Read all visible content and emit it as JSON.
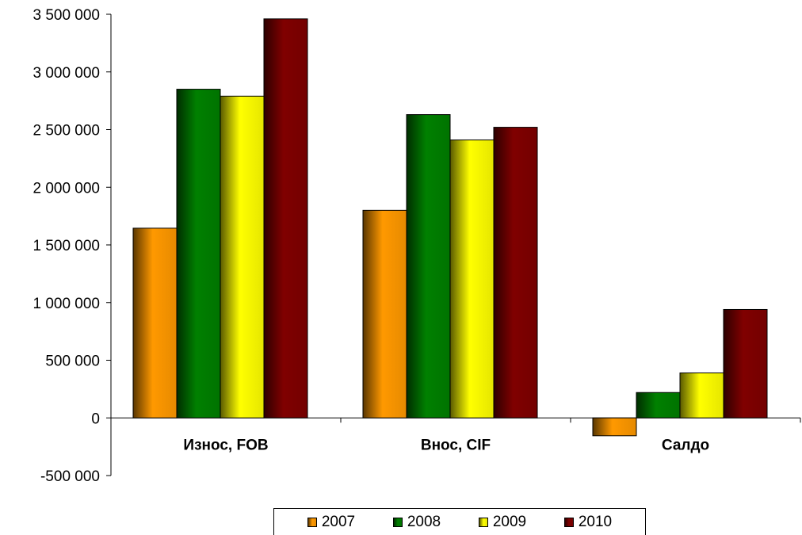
{
  "chart_data": {
    "type": "bar",
    "title": "",
    "xlabel": "",
    "ylabel": "",
    "categories": [
      "Износ, FOB",
      "Внос, CIF",
      "Салдо"
    ],
    "series": [
      {
        "name": "2007",
        "values": [
          1645000,
          1800000,
          -155000
        ],
        "color": "#ff9900"
      },
      {
        "name": "2008",
        "values": [
          2850000,
          2630000,
          220000
        ],
        "color": "#008000"
      },
      {
        "name": "2009",
        "values": [
          2790000,
          2410000,
          390000
        ],
        "color": "#ffff00"
      },
      {
        "name": "2010",
        "values": [
          3460000,
          2520000,
          940000
        ],
        "color": "#800000"
      }
    ],
    "ylim": [
      -500000,
      3500000
    ],
    "yticks": [
      3500000,
      3000000,
      2500000,
      2000000,
      1500000,
      1000000,
      500000,
      0,
      -500000
    ],
    "ytick_labels": [
      "3 500 000",
      "3 000 000",
      "2 500 000",
      "2 000 000",
      "1 500 000",
      "1 000 000",
      "500 000",
      "0",
      "-500 000"
    ],
    "grid": false,
    "legend_position": "bottom"
  }
}
